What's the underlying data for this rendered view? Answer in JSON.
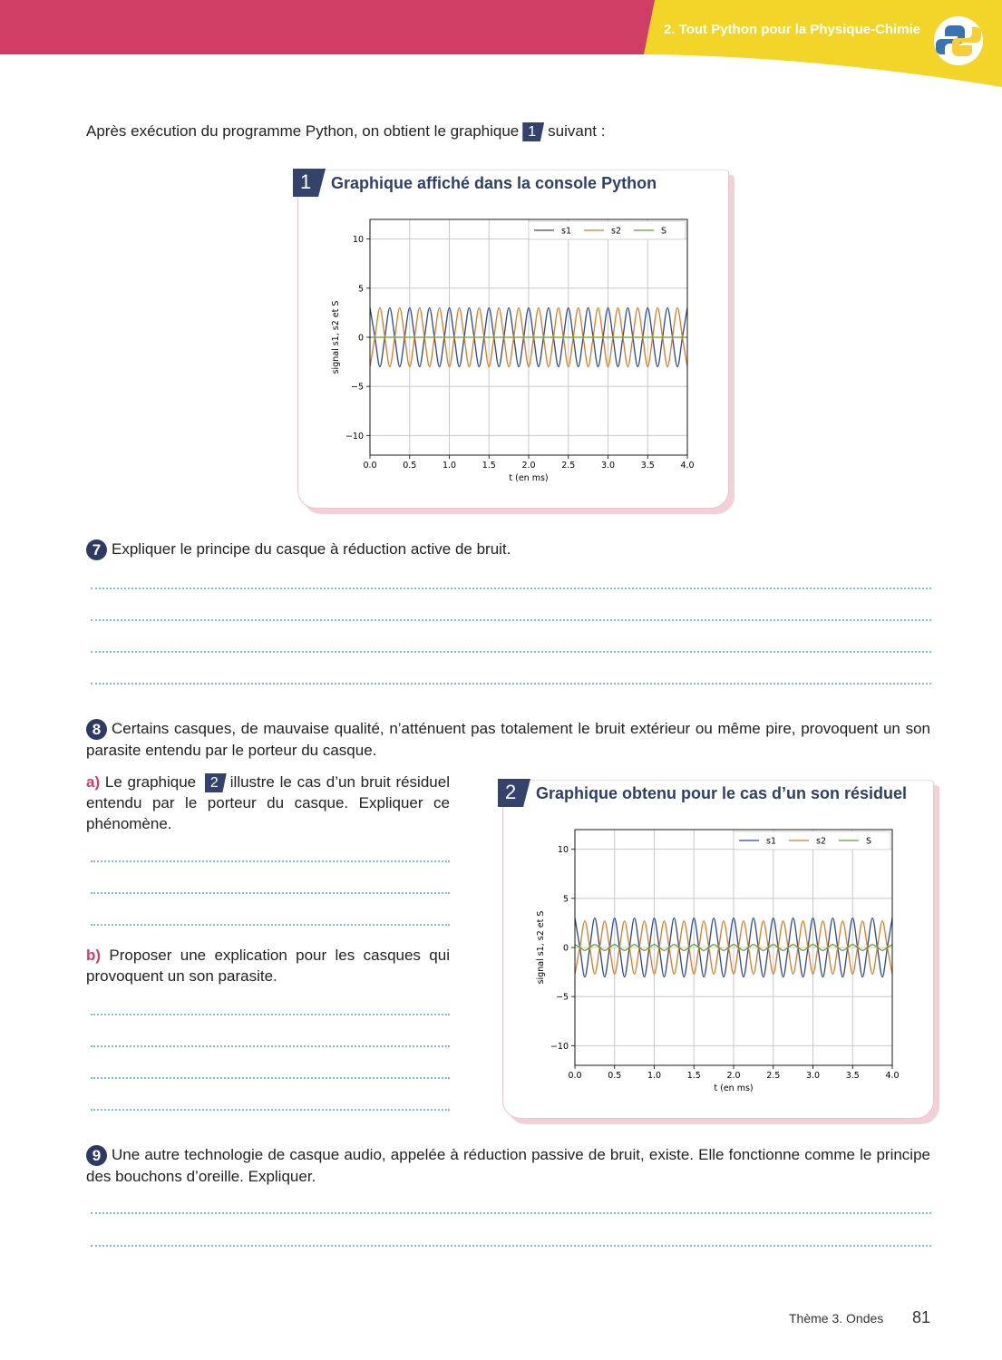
{
  "header": {
    "section": "2. Tout Python pour la Physique-Chimie"
  },
  "intro": {
    "before": "Après exécution du programme Python, on obtient le graphique",
    "figure": "1",
    "after": "suivant :"
  },
  "chart_data": [
    {
      "type": "line",
      "figure": "1",
      "title": "Graphique affiché dans la console Python",
      "x_label": "t (en ms)",
      "y_label": "signal s1, s2 et S",
      "x": [
        0,
        0.0625,
        0.125,
        0.1875,
        0.25,
        0.3125,
        0.375,
        0.4375,
        0.5,
        0.5625,
        0.625,
        0.6875,
        0.75,
        0.8125,
        0.875,
        0.9375,
        1,
        1.0625,
        1.125,
        1.1875,
        1.25,
        1.3125,
        1.375,
        1.4375,
        1.5,
        1.5625,
        1.625,
        1.6875,
        1.75,
        1.8125,
        1.875,
        1.9375,
        2,
        2.0625,
        2.125,
        2.1875,
        2.25,
        2.3125,
        2.375,
        2.4375,
        2.5,
        2.5625,
        2.625,
        2.6875,
        2.75,
        2.8125,
        2.875,
        2.9375,
        3,
        3.0625,
        3.125,
        3.1875,
        3.25,
        3.3125,
        3.375,
        3.4375,
        3.5,
        3.5625,
        3.625,
        3.6875,
        3.75,
        3.8125,
        3.875,
        3.9375,
        4
      ],
      "series": [
        {
          "name": "s1",
          "color": "#2b479c",
          "values": [
            3,
            0,
            -3,
            0,
            3,
            0,
            -3,
            0,
            3,
            0,
            -3,
            0,
            3,
            0,
            -3,
            0,
            3,
            0,
            -3,
            0,
            3,
            0,
            -3,
            0,
            3,
            0,
            -3,
            0,
            3,
            0,
            -3,
            0,
            3,
            0,
            -3,
            0,
            3,
            0,
            -3,
            0,
            3,
            0,
            -3,
            0,
            3,
            0,
            -3,
            0,
            3,
            0,
            -3,
            0,
            3,
            0,
            -3,
            0,
            3,
            0,
            -3,
            0,
            3,
            0,
            -3,
            0,
            3
          ]
        },
        {
          "name": "s2",
          "color": "#e0791f",
          "values": [
            -3,
            0,
            3,
            0,
            -3,
            0,
            3,
            0,
            -3,
            0,
            3,
            0,
            -3,
            0,
            3,
            0,
            -3,
            0,
            3,
            0,
            -3,
            0,
            3,
            0,
            -3,
            0,
            3,
            0,
            -3,
            0,
            3,
            0,
            -3,
            0,
            3,
            0,
            -3,
            0,
            3,
            0,
            -3,
            0,
            3,
            0,
            -3,
            0,
            3,
            0,
            -3,
            0,
            3,
            0,
            -3,
            0,
            3,
            0,
            -3,
            0,
            3,
            0,
            -3,
            0,
            3,
            0,
            -3
          ]
        },
        {
          "name": "S",
          "color": "#5aa02c",
          "values": [
            0,
            0,
            0,
            0,
            0,
            0,
            0,
            0,
            0,
            0,
            0,
            0,
            0,
            0,
            0,
            0,
            0,
            0,
            0,
            0,
            0,
            0,
            0,
            0,
            0,
            0,
            0,
            0,
            0,
            0,
            0,
            0,
            0,
            0,
            0,
            0,
            0,
            0,
            0,
            0,
            0,
            0,
            0,
            0,
            0,
            0,
            0,
            0,
            0,
            0,
            0,
            0,
            0,
            0,
            0,
            0,
            0,
            0,
            0,
            0,
            0,
            0,
            0,
            0,
            0
          ]
        }
      ],
      "xlim": [
        0,
        4
      ],
      "xticks": [
        {
          "value": 0,
          "label": "0.0"
        },
        {
          "value": 0.5,
          "label": "0.5"
        },
        {
          "value": 1,
          "label": "1.0"
        },
        {
          "value": 1.5,
          "label": "1.5"
        },
        {
          "value": 2,
          "label": "2.0"
        },
        {
          "value": 2.5,
          "label": "2.5"
        },
        {
          "value": 3,
          "label": "3.0"
        },
        {
          "value": 3.5,
          "label": "3.5"
        },
        {
          "value": 4,
          "label": "4.0"
        }
      ],
      "ylim": [
        -12,
        12
      ],
      "yticks": [
        {
          "value": -10,
          "label": "−10"
        },
        {
          "value": -5,
          "label": "−5"
        },
        0,
        5,
        10
      ],
      "grid": true,
      "legend": "upper-right"
    },
    {
      "type": "line",
      "figure": "2",
      "title": "Graphique obtenu pour le cas d’un son résiduel",
      "x_label": "t (en ms)",
      "y_label": "signal s1, s2 et S",
      "x": [
        0,
        0.0625,
        0.125,
        0.1875,
        0.25,
        0.3125,
        0.375,
        0.4375,
        0.5,
        0.5625,
        0.625,
        0.6875,
        0.75,
        0.8125,
        0.875,
        0.9375,
        1,
        1.0625,
        1.125,
        1.1875,
        1.25,
        1.3125,
        1.375,
        1.4375,
        1.5,
        1.5625,
        1.625,
        1.6875,
        1.75,
        1.8125,
        1.875,
        1.9375,
        2,
        2.0625,
        2.125,
        2.1875,
        2.25,
        2.3125,
        2.375,
        2.4375,
        2.5,
        2.5625,
        2.625,
        2.6875,
        2.75,
        2.8125,
        2.875,
        2.9375,
        3,
        3.0625,
        3.125,
        3.1875,
        3.25,
        3.3125,
        3.375,
        3.4375,
        3.5,
        3.5625,
        3.625,
        3.6875,
        3.75,
        3.8125,
        3.875,
        3.9375,
        4
      ],
      "series": [
        {
          "name": "s1",
          "color": "#2b479c",
          "values": [
            3,
            0,
            -3,
            0,
            3,
            0,
            -3,
            0,
            3,
            0,
            -3,
            0,
            3,
            0,
            -3,
            0,
            3,
            0,
            -3,
            0,
            3,
            0,
            -3,
            0,
            3,
            0,
            -3,
            0,
            3,
            0,
            -3,
            0,
            3,
            0,
            -3,
            0,
            3,
            0,
            -3,
            0,
            3,
            0,
            -3,
            0,
            3,
            0,
            -3,
            0,
            3,
            0,
            -3,
            0,
            3,
            0,
            -3,
            0,
            3,
            0,
            -3,
            0,
            3,
            0,
            -3,
            0,
            3
          ]
        },
        {
          "name": "s2",
          "color": "#e0791f",
          "values": [
            -2.7,
            0,
            2.7,
            0,
            -2.7,
            0,
            2.7,
            0,
            -2.7,
            0,
            2.7,
            0,
            -2.7,
            0,
            2.7,
            0,
            -2.7,
            0,
            2.7,
            0,
            -2.7,
            0,
            2.7,
            0,
            -2.7,
            0,
            2.7,
            0,
            -2.7,
            0,
            2.7,
            0,
            -2.7,
            0,
            2.7,
            0,
            -2.7,
            0,
            2.7,
            0,
            -2.7,
            0,
            2.7,
            0,
            -2.7,
            0,
            2.7,
            0,
            -2.7,
            0,
            2.7,
            0,
            -2.7,
            0,
            2.7,
            0,
            -2.7,
            0,
            2.7,
            0,
            -2.7,
            0,
            2.7,
            0,
            -2.7
          ]
        },
        {
          "name": "S",
          "color": "#5aa02c",
          "values": [
            0.3,
            0,
            -0.3,
            0,
            0.3,
            0,
            -0.3,
            0,
            0.3,
            0,
            -0.3,
            0,
            0.3,
            0,
            -0.3,
            0,
            0.3,
            0,
            -0.3,
            0,
            0.3,
            0,
            -0.3,
            0,
            0.3,
            0,
            -0.3,
            0,
            0.3,
            0,
            -0.3,
            0,
            0.3,
            0,
            -0.3,
            0,
            0.3,
            0,
            -0.3,
            0,
            0.3,
            0,
            -0.3,
            0,
            0.3,
            0,
            -0.3,
            0,
            0.3,
            0,
            -0.3,
            0,
            0.3,
            0,
            -0.3,
            0,
            0.3,
            0,
            -0.3,
            0,
            0.3,
            0,
            -0.3,
            0,
            0.3
          ]
        }
      ],
      "xlim": [
        0,
        4
      ],
      "xticks": [
        {
          "value": 0,
          "label": "0.0"
        },
        {
          "value": 0.5,
          "label": "0.5"
        },
        {
          "value": 1,
          "label": "1.0"
        },
        {
          "value": 1.5,
          "label": "1.5"
        },
        {
          "value": 2,
          "label": "2.0"
        },
        {
          "value": 2.5,
          "label": "2.5"
        },
        {
          "value": 3,
          "label": "3.0"
        },
        {
          "value": 3.5,
          "label": "3.5"
        },
        {
          "value": 4,
          "label": "4.0"
        }
      ],
      "ylim": [
        -12,
        12
      ],
      "yticks": [
        {
          "value": -10,
          "label": "−10"
        },
        {
          "value": -5,
          "label": "−5"
        },
        0,
        5,
        10
      ],
      "grid": true,
      "legend": "upper-right"
    }
  ],
  "questions": [
    {
      "number": "7",
      "text": "Expliquer le principe du casque à réduction active de bruit."
    },
    {
      "number": "8",
      "text": "Certains casques, de mauvaise qualité, n’atténuent pas totalement le bruit extérieur ou même pire, provoquent un son parasite entendu par le porteur du casque.",
      "parts": [
        {
          "label": "a)",
          "before": "Le graphique",
          "figure": "2",
          "after": "illustre le cas d’un bruit résiduel entendu par le porteur du casque. Expliquer ce phénomène."
        },
        {
          "label": "b)",
          "text": "Proposer une explication pour les casques qui provoquent un son parasite."
        }
      ]
    },
    {
      "number": "9",
      "text": "Une autre technologie de casque audio, appelée à réduction passive de bruit, existe. Elle fonctionne comme le principe des bouchons d’oreille. Expliquer."
    }
  ],
  "footer": {
    "theme": "Thème 3. Ondes",
    "page": "81"
  }
}
